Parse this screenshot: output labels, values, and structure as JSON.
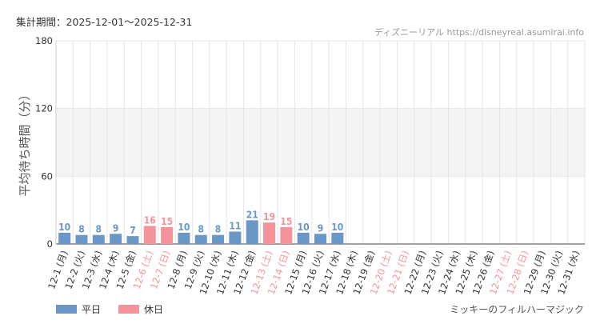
{
  "header": {
    "period": "集計期間：2025-12-01〜2025-12-31",
    "credit": "ディズニーリアル https://disneyreal.asumirai.info"
  },
  "footer": {
    "attraction": "ミッキーのフィルハーマジック"
  },
  "colors": {
    "weekday": "#6a96c8",
    "holiday": "#f4949a",
    "grid": "#e6e6e6",
    "band": "#f4f4f4"
  },
  "chart_data": {
    "type": "bar",
    "ylabel": "平均待ち時間（分）",
    "ylim": [
      0,
      180
    ],
    "yticks": [
      0,
      60,
      120,
      180
    ],
    "shaded_band": [
      60,
      120
    ],
    "legend": [
      {
        "name": "平日",
        "color": "#6a96c8"
      },
      {
        "name": "休日",
        "color": "#f4949a"
      }
    ],
    "categories": [
      "12-1 (月)",
      "12-2 (火)",
      "12-3 (水)",
      "12-4 (木)",
      "12-5 (金)",
      "12-6 (土)",
      "12-7 (日)",
      "12-8 (月)",
      "12-9 (火)",
      "12-10 (水)",
      "12-11 (木)",
      "12-12 (金)",
      "12-13 (土)",
      "12-14 (日)",
      "12-15 (月)",
      "12-16 (火)",
      "12-17 (水)",
      "12-18 (木)",
      "12-19 (金)",
      "12-20 (土)",
      "12-21 (日)",
      "12-22 (月)",
      "12-23 (火)",
      "12-24 (水)",
      "12-25 (木)",
      "12-26 (金)",
      "12-27 (土)",
      "12-28 (日)",
      "12-29 (月)",
      "12-30 (火)",
      "12-31 (水)"
    ],
    "holiday": [
      false,
      false,
      false,
      false,
      false,
      true,
      true,
      false,
      false,
      false,
      false,
      false,
      true,
      true,
      false,
      false,
      false,
      false,
      false,
      true,
      true,
      false,
      false,
      false,
      false,
      false,
      true,
      true,
      false,
      false,
      false
    ],
    "values": [
      10,
      8,
      8,
      9,
      7,
      16,
      15,
      10,
      8,
      8,
      11,
      21,
      19,
      15,
      10,
      9,
      10,
      null,
      null,
      null,
      null,
      null,
      null,
      null,
      null,
      null,
      null,
      null,
      null,
      null,
      null
    ]
  }
}
